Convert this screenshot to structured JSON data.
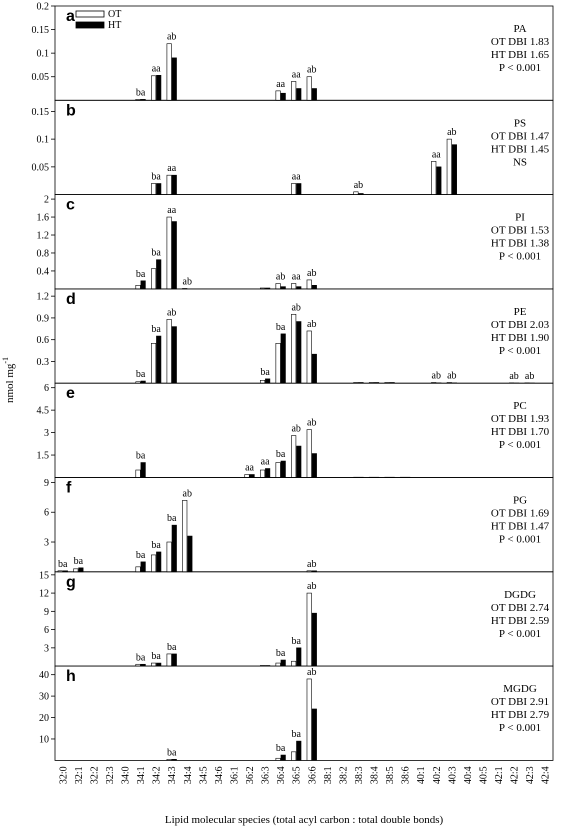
{
  "categories": [
    "32:0",
    "32:1",
    "32:2",
    "32:3",
    "34:0",
    "34:1",
    "34:2",
    "34:3",
    "34:4",
    "34:5",
    "34:6",
    "36:1",
    "36:2",
    "36:3",
    "36:4",
    "36:5",
    "36:6",
    "38:1",
    "38:2",
    "38:3",
    "38:4",
    "38:5",
    "38:6",
    "40:1",
    "40:2",
    "40:3",
    "40:4",
    "40:5",
    "42:1",
    "42:2",
    "42:3",
    "42:4"
  ],
  "y_label": "nmol mg",
  "y_label_sup": "-1",
  "x_label": "Lipid molecular species (total acyl carbon : total double bonds)",
  "chart_data": [
    {
      "type": "bar",
      "panel": "a",
      "title": "PA",
      "notes": [
        "OT DBI 1.83",
        "HT DBI 1.65",
        "P < 0.001"
      ],
      "legend": true,
      "ylim": [
        0,
        0.2
      ],
      "yticks": [
        0.05,
        0.1,
        0.15,
        0.2
      ],
      "series": [
        {
          "name": "OT",
          "color": "#ffffff",
          "values": [
            0,
            0,
            0,
            0,
            0,
            0.002,
            0.052,
            0.12,
            0,
            0,
            0,
            0,
            0,
            0,
            0.02,
            0.04,
            0.05,
            0,
            0,
            0,
            0,
            0,
            0,
            0,
            0,
            0,
            0,
            0,
            0,
            0,
            0,
            0
          ]
        },
        {
          "name": "HT",
          "color": "#000000",
          "values": [
            0,
            0,
            0,
            0,
            0,
            0.002,
            0.053,
            0.09,
            0,
            0,
            0,
            0,
            0,
            0,
            0.015,
            0.025,
            0.025,
            0,
            0,
            0,
            0,
            0,
            0,
            0,
            0,
            0,
            0,
            0,
            0,
            0,
            0,
            0
          ]
        }
      ],
      "letters": [
        null,
        null,
        null,
        null,
        null,
        "ba",
        "aa",
        "ab",
        null,
        null,
        null,
        null,
        null,
        null,
        "aa",
        "aa",
        "ab",
        null,
        null,
        null,
        null,
        null,
        null,
        null,
        null,
        null,
        null,
        null,
        null,
        null,
        null,
        null
      ]
    },
    {
      "type": "bar",
      "panel": "b",
      "title": "PS",
      "notes": [
        "OT DBI 1.47",
        "HT DBI 1.45",
        "NS"
      ],
      "ylim": [
        0,
        0.17
      ],
      "yticks": [
        0.05,
        0.1,
        0.15
      ],
      "series": [
        {
          "name": "OT",
          "color": "#ffffff",
          "values": [
            0,
            0,
            0,
            0,
            0,
            0,
            0.02,
            0.035,
            0,
            0,
            0,
            0,
            0,
            0,
            0,
            0.02,
            0,
            0,
            0,
            0.005,
            0,
            0,
            0,
            0,
            0.06,
            0.1,
            0,
            0,
            0,
            0,
            0,
            0
          ]
        },
        {
          "name": "HT",
          "color": "#000000",
          "values": [
            0,
            0,
            0,
            0,
            0,
            0,
            0.02,
            0.035,
            0,
            0,
            0,
            0,
            0,
            0,
            0,
            0.02,
            0,
            0,
            0,
            0.002,
            0,
            0,
            0,
            0,
            0.05,
            0.09,
            0,
            0,
            0,
            0,
            0,
            0
          ]
        }
      ],
      "letters": [
        null,
        null,
        null,
        null,
        null,
        null,
        "ba",
        "aa",
        null,
        null,
        null,
        null,
        null,
        null,
        null,
        "aa",
        null,
        null,
        null,
        "ab",
        null,
        null,
        null,
        null,
        "aa",
        "ab",
        null,
        null,
        null,
        null,
        null,
        null
      ]
    },
    {
      "type": "bar",
      "panel": "c",
      "title": "PI",
      "notes": [
        "OT DBI 1.53",
        "HT DBI 1.38",
        "P < 0.001"
      ],
      "ylim": [
        0,
        2.1
      ],
      "yticks": [
        0.4,
        0.8,
        1.2,
        1.6,
        2.0
      ],
      "series": [
        {
          "name": "OT",
          "color": "#ffffff",
          "values": [
            0,
            0,
            0,
            0,
            0,
            0.08,
            0.45,
            1.6,
            0.01,
            0,
            0,
            0,
            0,
            0.02,
            0.12,
            0.12,
            0.2,
            0,
            0,
            0,
            0,
            0,
            0,
            0,
            0,
            0,
            0,
            0,
            0,
            0,
            0,
            0
          ]
        },
        {
          "name": "HT",
          "color": "#000000",
          "values": [
            0,
            0,
            0,
            0,
            0,
            0.18,
            0.65,
            1.5,
            0,
            0,
            0,
            0,
            0,
            0.02,
            0.05,
            0.05,
            0.08,
            0,
            0,
            0,
            0,
            0,
            0,
            0,
            0,
            0,
            0,
            0,
            0,
            0,
            0,
            0
          ]
        }
      ],
      "letters": [
        null,
        null,
        null,
        null,
        null,
        "ba",
        "ba",
        "aa",
        "ab",
        null,
        null,
        null,
        null,
        null,
        "ab",
        "aa",
        "ab",
        null,
        null,
        null,
        null,
        null,
        null,
        null,
        null,
        null,
        null,
        null,
        null,
        null,
        null,
        null
      ]
    },
    {
      "type": "bar",
      "panel": "d",
      "title": "PE",
      "notes": [
        "OT DBI 2.03",
        "HT DBI 1.90",
        "P < 0.001"
      ],
      "ylim": [
        0,
        1.3
      ],
      "yticks": [
        0.3,
        0.6,
        0.9,
        1.2
      ],
      "series": [
        {
          "name": "OT",
          "color": "#ffffff",
          "values": [
            0,
            0,
            0,
            0,
            0,
            0.02,
            0.55,
            0.88,
            0,
            0,
            0,
            0,
            0,
            0.04,
            0.55,
            0.95,
            0.72,
            0,
            0,
            0.01,
            0.01,
            0.01,
            0,
            0,
            0.01,
            0.01,
            0,
            0,
            0,
            0.005,
            0.005,
            0
          ]
        },
        {
          "name": "HT",
          "color": "#000000",
          "values": [
            0,
            0,
            0,
            0,
            0,
            0.03,
            0.65,
            0.78,
            0,
            0,
            0,
            0,
            0,
            0.06,
            0.68,
            0.85,
            0.4,
            0,
            0,
            0.01,
            0.01,
            0.01,
            0,
            0,
            0.005,
            0.005,
            0,
            0,
            0,
            0.002,
            0.002,
            0
          ]
        }
      ],
      "letters": [
        null,
        null,
        null,
        null,
        null,
        "ba",
        "ba",
        "ab",
        null,
        null,
        null,
        null,
        null,
        "ba",
        "ba",
        "ab",
        "ab",
        null,
        null,
        null,
        null,
        null,
        null,
        null,
        "ab",
        "ab",
        null,
        null,
        null,
        "ab",
        "ab",
        null
      ]
    },
    {
      "type": "bar",
      "panel": "e",
      "title": "PC",
      "notes": [
        "OT DBI 1.93",
        "HT DBI 1.70",
        "P < 0.001"
      ],
      "ylim": [
        0,
        6.3
      ],
      "yticks": [
        1.5,
        3.0,
        4.5,
        6.0
      ],
      "series": [
        {
          "name": "OT",
          "color": "#ffffff",
          "values": [
            0,
            0,
            0,
            0,
            0,
            0.5,
            0,
            0,
            0,
            0,
            0,
            0,
            0.2,
            0.5,
            1.0,
            2.8,
            3.2,
            0,
            0,
            0.02,
            0.02,
            0.02,
            0.02,
            0,
            0,
            0,
            0,
            0,
            0,
            0,
            0,
            0
          ]
        },
        {
          "name": "HT",
          "color": "#000000",
          "values": [
            0,
            0,
            0,
            0,
            0,
            1.0,
            0,
            0,
            0,
            0,
            0,
            0,
            0.2,
            0.6,
            1.1,
            2.1,
            1.6,
            0,
            0,
            0.02,
            0.02,
            0.02,
            0.02,
            0,
            0,
            0,
            0,
            0,
            0,
            0,
            0,
            0
          ]
        }
      ],
      "letters": [
        null,
        null,
        null,
        null,
        null,
        "ba",
        null,
        null,
        null,
        null,
        null,
        null,
        "aa",
        "aa",
        "ba",
        "ab",
        "ab",
        null,
        null,
        null,
        null,
        null,
        null,
        null,
        null,
        null,
        null,
        null,
        null,
        null,
        null,
        null
      ]
    },
    {
      "type": "bar",
      "panel": "f",
      "title": "PG",
      "notes": [
        "OT DBI 1.69",
        "HT DBI 1.47",
        "P < 0.001"
      ],
      "ylim": [
        0,
        9.5
      ],
      "yticks": [
        3,
        6,
        9
      ],
      "series": [
        {
          "name": "OT",
          "color": "#ffffff",
          "values": [
            0.1,
            0.3,
            0,
            0,
            0,
            0.5,
            1.7,
            3.0,
            7.2,
            0,
            0,
            0,
            0,
            0,
            0,
            0,
            0.1,
            0,
            0,
            0,
            0,
            0,
            0,
            0,
            0,
            0,
            0,
            0,
            0,
            0,
            0,
            0
          ]
        },
        {
          "name": "HT",
          "color": "#000000",
          "values": [
            0.1,
            0.4,
            0,
            0,
            0,
            1.0,
            2.0,
            4.7,
            3.6,
            0,
            0,
            0,
            0,
            0,
            0,
            0,
            0.1,
            0,
            0,
            0,
            0,
            0,
            0,
            0,
            0,
            0,
            0,
            0,
            0,
            0,
            0,
            0
          ]
        }
      ],
      "letters": [
        "ba",
        "ba",
        null,
        null,
        null,
        "ba",
        "ba",
        "ba",
        "ab",
        null,
        null,
        null,
        null,
        null,
        null,
        null,
        "ab",
        null,
        null,
        null,
        null,
        null,
        null,
        null,
        null,
        null,
        null,
        null,
        null,
        null,
        null,
        null
      ]
    },
    {
      "type": "bar",
      "panel": "g",
      "title": "DGDG",
      "notes": [
        "OT DBI 2.74",
        "HT DBI 2.59",
        "P < 0.001"
      ],
      "ylim": [
        0,
        15.5
      ],
      "yticks": [
        3,
        6,
        9,
        12,
        15
      ],
      "series": [
        {
          "name": "OT",
          "color": "#ffffff",
          "values": [
            0,
            0,
            0,
            0,
            0,
            0.3,
            0.5,
            2.0,
            0,
            0,
            0,
            0,
            0,
            0.1,
            0.5,
            0.8,
            12.0,
            0,
            0,
            0,
            0,
            0,
            0,
            0,
            0,
            0,
            0,
            0,
            0,
            0,
            0,
            0
          ]
        },
        {
          "name": "HT",
          "color": "#000000",
          "values": [
            0,
            0,
            0,
            0,
            0,
            0.3,
            0.5,
            2.0,
            0,
            0,
            0,
            0,
            0,
            0.1,
            1.0,
            3.0,
            8.7,
            0,
            0,
            0,
            0,
            0,
            0,
            0,
            0,
            0,
            0,
            0,
            0,
            0,
            0,
            0
          ]
        }
      ],
      "letters": [
        null,
        null,
        null,
        null,
        null,
        "ba",
        "ba",
        "ba",
        null,
        null,
        null,
        null,
        null,
        null,
        "ba",
        "ba",
        "ab",
        null,
        null,
        null,
        null,
        null,
        null,
        null,
        null,
        null,
        null,
        null,
        null,
        null,
        null,
        null
      ]
    },
    {
      "type": "bar",
      "panel": "h",
      "title": "MGDG",
      "notes": [
        "OT DBI 2.91",
        "HT DBI 2.79",
        "P < 0.001"
      ],
      "ylim": [
        0,
        44
      ],
      "yticks": [
        10,
        20,
        30,
        40
      ],
      "series": [
        {
          "name": "OT",
          "color": "#ffffff",
          "values": [
            0,
            0,
            0,
            0,
            0,
            0,
            0,
            0.5,
            0,
            0,
            0,
            0,
            0,
            0,
            1,
            4,
            38,
            0,
            0,
            0,
            0,
            0,
            0,
            0,
            0,
            0,
            0,
            0,
            0,
            0,
            0,
            0
          ]
        },
        {
          "name": "HT",
          "color": "#000000",
          "values": [
            0,
            0,
            0,
            0,
            0,
            0,
            0,
            0.5,
            0,
            0,
            0,
            0,
            0,
            0,
            2.5,
            9,
            24,
            0,
            0,
            0,
            0,
            0,
            0,
            0,
            0,
            0,
            0,
            0,
            0,
            0,
            0,
            0
          ]
        }
      ],
      "letters": [
        null,
        null,
        null,
        null,
        null,
        null,
        null,
        "ba",
        null,
        null,
        null,
        null,
        null,
        null,
        "ba",
        "ba",
        "ab",
        null,
        null,
        null,
        null,
        null,
        null,
        null,
        null,
        null,
        null,
        null,
        null,
        null,
        null,
        null
      ]
    }
  ]
}
